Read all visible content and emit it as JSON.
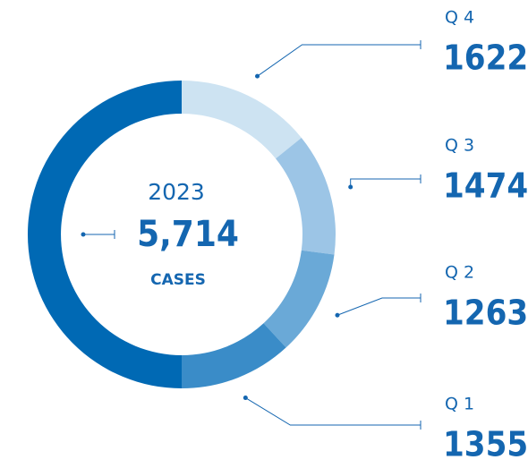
{
  "chart_data": {
    "type": "donut",
    "center_label": "2023",
    "total": 5714,
    "total_label": "5,714",
    "total_color": "#0069b4",
    "unit": "CASES",
    "categories": [
      "Q 4",
      "Q 3",
      "Q 2",
      "Q 1"
    ],
    "values": [
      1622,
      1474,
      1263,
      1355
    ],
    "colors": [
      "#cde3f2",
      "#9cc5e6",
      "#6aa9d7",
      "#3a8cc8"
    ]
  }
}
